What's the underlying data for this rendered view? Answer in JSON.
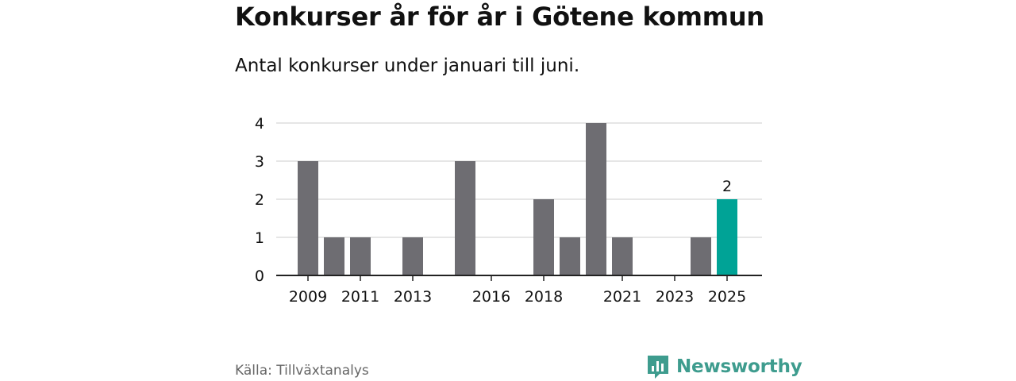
{
  "header": {
    "title": "Konkurser år för år i Götene kommun",
    "subtitle": "Antal konkurser under januari till juni."
  },
  "footer": {
    "source": "Källa: Tillväxtanalys",
    "brand": "Newsworthy",
    "brand_icon": "newsworthy-logo-icon"
  },
  "colors": {
    "bar": "#6e6d72",
    "highlight": "#00a396",
    "grid": "#dddddd",
    "axis": "#222222",
    "text": "#111111",
    "brand": "#3e9c8e"
  },
  "chart_data": {
    "type": "bar",
    "x": [
      2009,
      2010,
      2011,
      2012,
      2013,
      2014,
      2015,
      2016,
      2017,
      2018,
      2019,
      2020,
      2021,
      2022,
      2023,
      2024,
      2025
    ],
    "values": [
      3,
      1,
      1,
      0,
      1,
      0,
      3,
      0,
      0,
      2,
      1,
      4,
      1,
      0,
      0,
      1,
      2
    ],
    "x_tick_labels": [
      "2009",
      "2011",
      "2013",
      "2016",
      "2018",
      "2021",
      "2023",
      "2025"
    ],
    "y_ticks": [
      0,
      1,
      2,
      3,
      4
    ],
    "ylim": [
      0,
      4
    ],
    "grid": true,
    "highlight": {
      "x": 2025,
      "label": "2"
    }
  }
}
